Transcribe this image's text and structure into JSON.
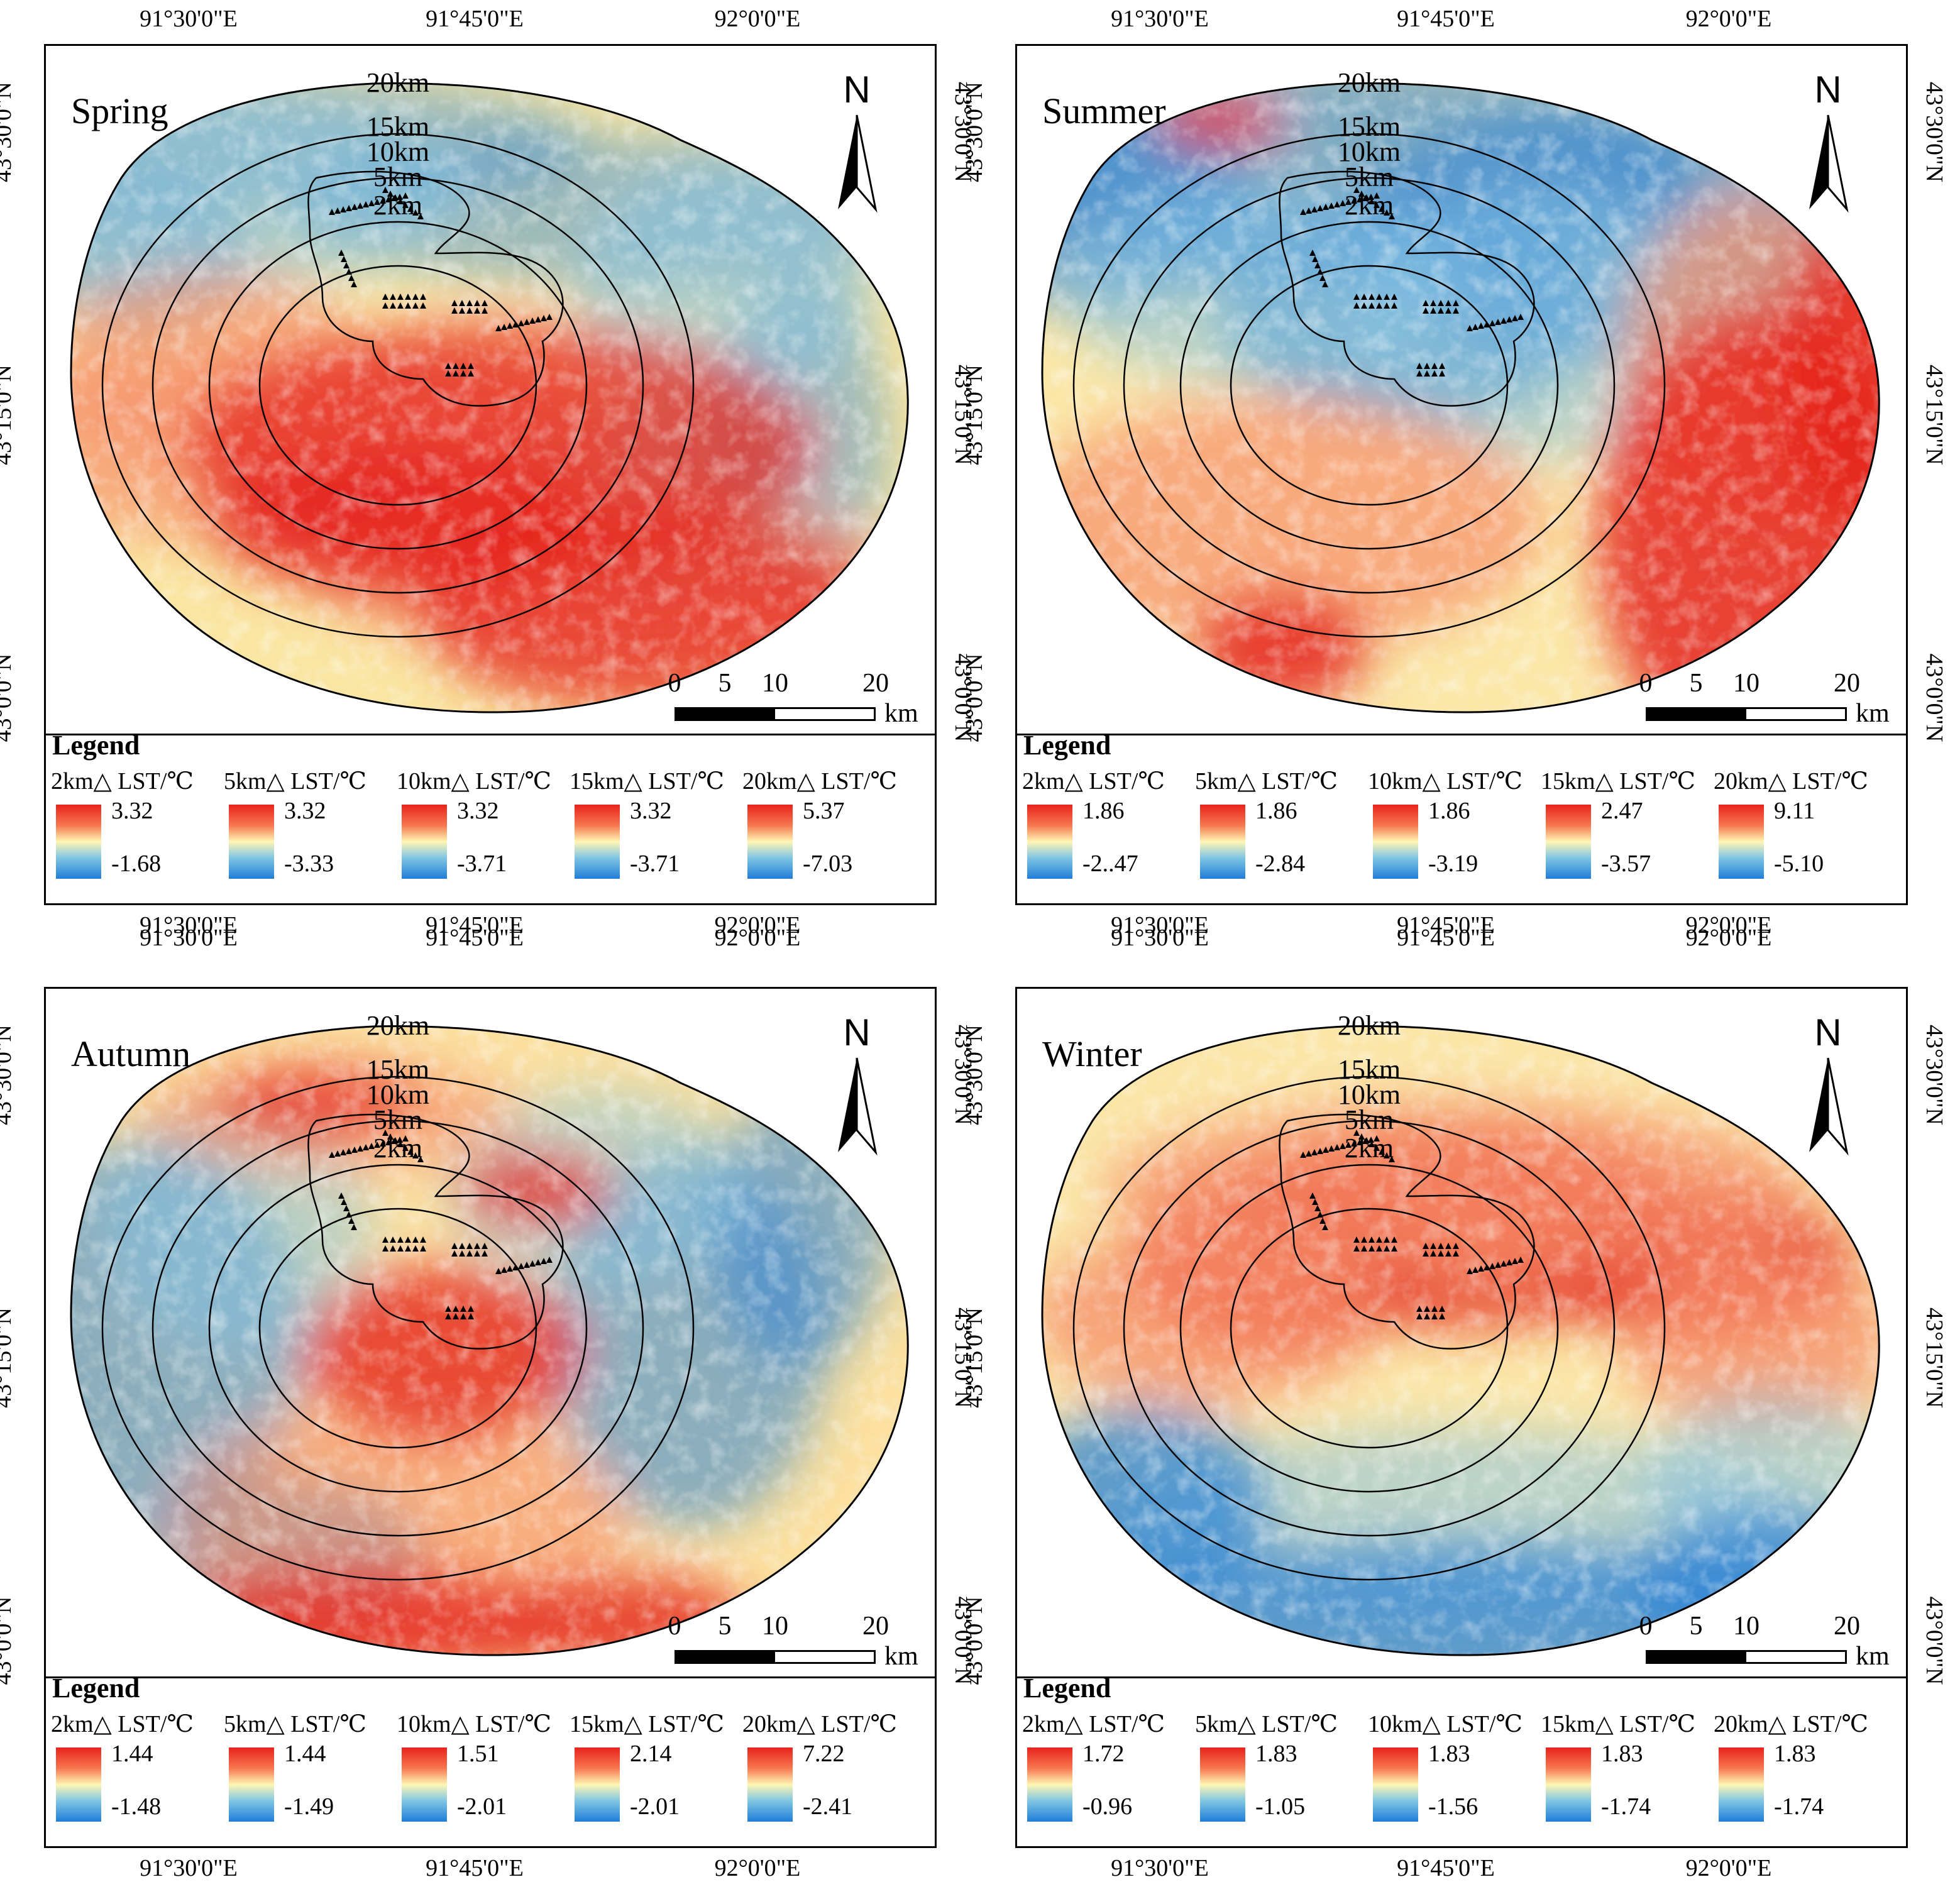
{
  "lon_labels": [
    "91°30'0\"E",
    "91°45'0\"E",
    "92°0'0\"E"
  ],
  "lat_labels": [
    "43°30'0\"N",
    "43°15'0\"N",
    "43°0'0\"N"
  ],
  "ring_labels": [
    "20km",
    "15km",
    "10km",
    "5km",
    "2km"
  ],
  "north_label": "N",
  "scale_bar": {
    "ticks": [
      "0",
      "5",
      "10",
      "20"
    ],
    "unit": "km"
  },
  "legend_title": "Legend",
  "legend_headers": [
    "2km△ LST/℃",
    "5km△ LST/℃",
    "10km△ LST/℃",
    "15km△ LST/℃",
    "20km△ LST/℃"
  ],
  "ramp_colors": [
    "#e8231c",
    "#f77750",
    "#fff6b4",
    "#7fc6e4",
    "#1f7dd6"
  ],
  "panels": [
    {
      "season": "Spring",
      "max": [
        "3.32",
        "3.32",
        "3.32",
        "3.32",
        "5.37"
      ],
      "min": [
        "-1.68",
        "-3.33",
        "-3.71",
        "-3.71",
        "-7.03"
      ]
    },
    {
      "season": "Summer",
      "max": [
        "1.86",
        "1.86",
        "1.86",
        "2.47",
        "9.11"
      ],
      "min": [
        "-2..47",
        "-2.84",
        "-3.19",
        "-3.57",
        "-5.10"
      ]
    },
    {
      "season": "Autumn",
      "max": [
        "1.44",
        "1.44",
        "1.51",
        "2.14",
        "7.22"
      ],
      "min": [
        "-1.48",
        "-1.49",
        "-2.01",
        "-2.01",
        "-2.41"
      ]
    },
    {
      "season": "Winter",
      "max": [
        "1.72",
        "1.83",
        "1.83",
        "1.83",
        "1.83"
      ],
      "min": [
        "-0.96",
        "-1.05",
        "-1.56",
        "-1.74",
        "-1.74"
      ]
    }
  ]
}
